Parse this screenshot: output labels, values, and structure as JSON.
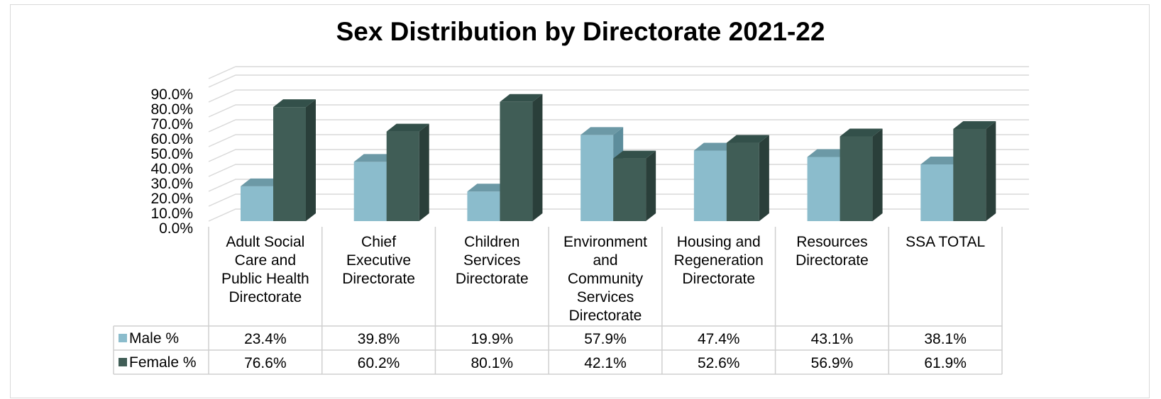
{
  "chart_data": {
    "type": "bar",
    "title": "Sex Distribution by Directorate 2021-22",
    "categories": [
      [
        "Adult Social",
        "Care and",
        "Public Health",
        "Directorate"
      ],
      [
        "Chief",
        "Executive",
        "Directorate"
      ],
      [
        "Children",
        "Services",
        "Directorate"
      ],
      [
        "Environment",
        "and",
        "Community",
        "Services",
        "Directorate"
      ],
      [
        "Housing and",
        "Regeneration",
        "Directorate"
      ],
      [
        "Resources",
        "Directorate"
      ],
      [
        "SSA TOTAL"
      ]
    ],
    "series": [
      {
        "name": "Male %",
        "values": [
          23.4,
          39.8,
          19.9,
          57.9,
          47.4,
          43.1,
          38.1
        ],
        "labels": [
          "23.4%",
          "39.8%",
          "19.9%",
          "57.9%",
          "47.4%",
          "43.1%",
          "38.1%"
        ]
      },
      {
        "name": "Female %",
        "values": [
          76.6,
          60.2,
          80.1,
          42.1,
          52.6,
          56.9,
          61.9
        ],
        "labels": [
          "76.6%",
          "60.2%",
          "80.1%",
          "42.1%",
          "52.6%",
          "56.9%",
          "61.9%"
        ]
      }
    ],
    "yticks": [
      "0.0%",
      "10.0%",
      "20.0%",
      "30.0%",
      "40.0%",
      "50.0%",
      "60.0%",
      "70.0%",
      "80.0%",
      "90.0%"
    ],
    "ylim": [
      0,
      90
    ],
    "grid": true,
    "style": "3d-clustered-column-with-data-table",
    "colors": {
      "male_front": "#8bbccc",
      "male_side": "#5d8d9c",
      "male_top": "#6c99a6",
      "female_front": "#405d56",
      "female_side": "#2a3f3a",
      "female_top": "#33504a",
      "grid": "#d9d9d9"
    }
  }
}
